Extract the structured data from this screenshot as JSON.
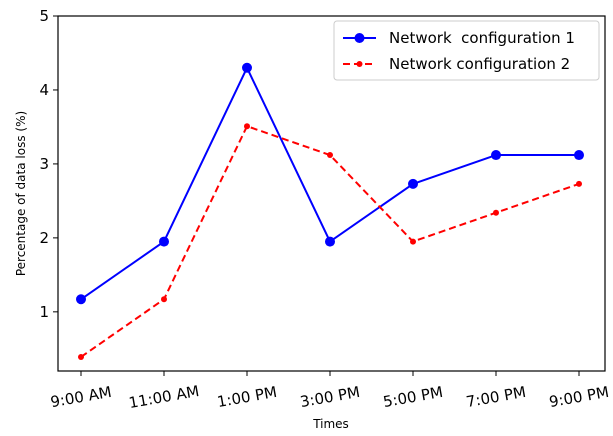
{
  "chart_data": {
    "type": "line",
    "title": "",
    "xlabel": "Times",
    "ylabel": "Percentage of data loss (%)",
    "categories": [
      "9:00 AM",
      "11:00 AM",
      "1:00 PM",
      "3:00 PM",
      "5:00 PM",
      "7:00 PM",
      "9:00 PM"
    ],
    "ylim": [
      0.2,
      5
    ],
    "yticks": [
      1,
      2,
      3,
      4,
      5
    ],
    "grid": false,
    "legend_position": "top-right",
    "series": [
      {
        "name": "Network  configuration 1",
        "values": [
          1.17,
          1.95,
          4.3,
          1.95,
          2.73,
          3.12,
          3.12
        ],
        "color": "#0000ff",
        "line_style": "solid",
        "marker": "circle"
      },
      {
        "name": "Network configuration 2",
        "values": [
          0.39,
          1.17,
          3.51,
          3.12,
          1.95,
          2.34,
          2.73
        ],
        "color": "#ff0000",
        "line_style": "dashed",
        "marker": "circle"
      }
    ]
  }
}
